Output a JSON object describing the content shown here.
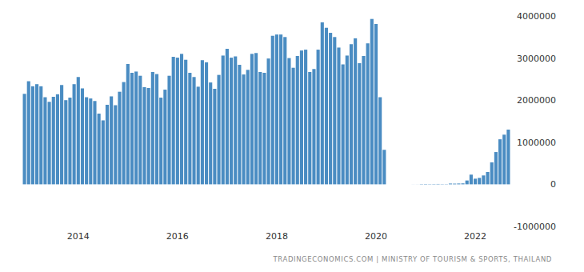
{
  "chart_data": {
    "type": "bar",
    "source": "TRADINGECONOMICS.COM | MINISTRY OF TOURISM & SPORTS, THAILAND",
    "categories": [
      null,
      null,
      null,
      null,
      null,
      null,
      null,
      null,
      null,
      null,
      null,
      null,
      null,
      "2014",
      null,
      null,
      null,
      null,
      null,
      null,
      null,
      null,
      null,
      null,
      null,
      null,
      null,
      null,
      null,
      null,
      null,
      null,
      null,
      null,
      null,
      null,
      null,
      "2016",
      null,
      null,
      null,
      null,
      null,
      null,
      null,
      null,
      null,
      null,
      null,
      null,
      null,
      null,
      null,
      null,
      null,
      null,
      null,
      null,
      null,
      null,
      null,
      "2018",
      null,
      null,
      null,
      null,
      null,
      null,
      null,
      null,
      null,
      null,
      null,
      null,
      null,
      null,
      null,
      null,
      null,
      null,
      null,
      null,
      null,
      null,
      null,
      "2020",
      null,
      null,
      null,
      null,
      null,
      null,
      null,
      null,
      null,
      null,
      null,
      null,
      null,
      null,
      null,
      null,
      null,
      null,
      null,
      null,
      null,
      null,
      null,
      "2022",
      null,
      null,
      null,
      null,
      null,
      null,
      null,
      null
    ],
    "values": [
      2150000,
      2450000,
      2330000,
      2380000,
      2330000,
      2070000,
      1960000,
      2080000,
      2140000,
      2360000,
      2000000,
      2060000,
      2380000,
      2550000,
      2280000,
      2070000,
      2040000,
      1980000,
      1680000,
      1520000,
      1890000,
      2090000,
      1880000,
      2200000,
      2430000,
      2860000,
      2650000,
      2680000,
      2580000,
      2310000,
      2290000,
      2670000,
      2620000,
      2060000,
      2250000,
      2580000,
      3030000,
      3010000,
      3100000,
      2960000,
      2650000,
      2550000,
      2320000,
      2950000,
      2900000,
      2420000,
      2270000,
      2600000,
      3060000,
      3220000,
      3010000,
      3040000,
      2840000,
      2610000,
      2720000,
      3100000,
      3120000,
      2670000,
      2650000,
      2990000,
      3530000,
      3560000,
      3560000,
      3500000,
      3000000,
      2770000,
      3050000,
      3180000,
      3200000,
      2670000,
      2740000,
      3200000,
      3850000,
      3720000,
      3600000,
      3500000,
      3250000,
      2850000,
      3060000,
      3330000,
      3470000,
      2880000,
      3050000,
      3350000,
      3930000,
      3810000,
      2070000,
      820000,
      0,
      0,
      0,
      0,
      0,
      0,
      1200,
      1400,
      6500,
      7700,
      6000,
      6900,
      8400,
      5800,
      5300,
      18000,
      16000,
      19000,
      22000,
      91000,
      230000,
      134000,
      153000,
      211000,
      293000,
      522000,
      767000,
      1070000,
      1180000,
      1300000
    ],
    "color": "#4a8cc2",
    "ylim": [
      -1000000,
      4000000
    ],
    "yticks": [
      -1000000,
      0,
      1000000,
      2000000,
      3000000,
      4000000
    ],
    "grid": false
  }
}
